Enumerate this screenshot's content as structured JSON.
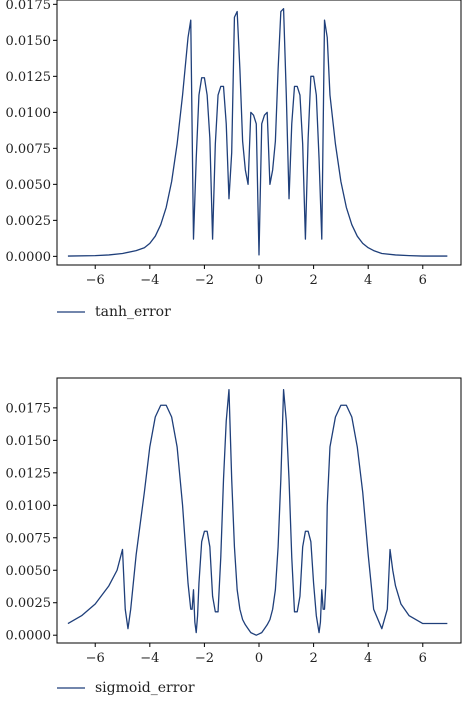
{
  "chart_data": [
    {
      "type": "line",
      "legend": {
        "placement": "bottom-left",
        "entries": [
          "tanh_error"
        ]
      },
      "series": [
        {
          "name": "tanh_error",
          "color": "#1f3f7a",
          "x": [
            -7.0,
            -6.0,
            -5.5,
            -5.0,
            -4.5,
            -4.2,
            -4.0,
            -3.8,
            -3.6,
            -3.4,
            -3.2,
            -3.0,
            -2.8,
            -2.6,
            -2.5,
            -2.4,
            -2.3,
            -2.2,
            -2.1,
            -2.0,
            -1.9,
            -1.8,
            -1.7,
            -1.6,
            -1.5,
            -1.4,
            -1.3,
            -1.2,
            -1.1,
            -1.0,
            -0.9,
            -0.8,
            -0.7,
            -0.6,
            -0.5,
            -0.4,
            -0.3,
            -0.2,
            -0.1,
            0.0,
            0.1,
            0.2,
            0.3,
            0.4,
            0.5,
            0.6,
            0.7,
            0.8,
            0.9,
            1.0,
            1.1,
            1.2,
            1.3,
            1.4,
            1.5,
            1.6,
            1.7,
            1.8,
            1.9,
            2.0,
            2.1,
            2.2,
            2.3,
            2.4,
            2.5,
            2.6,
            2.8,
            3.0,
            3.2,
            3.4,
            3.6,
            3.8,
            4.0,
            4.2,
            4.5,
            5.0,
            5.5,
            6.0,
            6.9
          ],
          "values": [
            2e-05,
            5e-05,
            0.0001,
            0.0002,
            0.0004,
            0.0006,
            0.0009,
            0.0014,
            0.0022,
            0.0034,
            0.0052,
            0.0078,
            0.0112,
            0.0152,
            0.0164,
            0.0012,
            0.0068,
            0.0112,
            0.0124,
            0.0124,
            0.0112,
            0.0082,
            0.0012,
            0.0078,
            0.0112,
            0.0118,
            0.0118,
            0.0092,
            0.004,
            0.0072,
            0.0166,
            0.017,
            0.013,
            0.008,
            0.006,
            0.005,
            0.01,
            0.0098,
            0.0092,
            0.0001,
            0.0092,
            0.0098,
            0.01,
            0.005,
            0.006,
            0.008,
            0.013,
            0.017,
            0.0172,
            0.0112,
            0.004,
            0.0092,
            0.0118,
            0.0118,
            0.0112,
            0.0078,
            0.0012,
            0.0082,
            0.0125,
            0.0125,
            0.0112,
            0.0068,
            0.0012,
            0.0164,
            0.0152,
            0.0112,
            0.0078,
            0.0052,
            0.0034,
            0.0022,
            0.0014,
            0.0009,
            0.0006,
            0.0004,
            0.0002,
            0.0001,
            5e-05,
            2e-05,
            2e-05
          ]
        }
      ],
      "xlim": [
        -7.4,
        7.4
      ],
      "ylim": [
        -0.0006,
        0.0178
      ],
      "xticks": [
        -6,
        -4,
        -2,
        0,
        2,
        4,
        6
      ],
      "xtick_labels": [
        "−6",
        "−4",
        "−2",
        "0",
        "2",
        "4",
        "6"
      ],
      "yticks": [
        0.0,
        0.0025,
        0.005,
        0.0075,
        0.01,
        0.0125,
        0.015,
        0.0175
      ],
      "ytick_labels": [
        "0.0000",
        "0.0025",
        "0.0050",
        "0.0075",
        "0.0100",
        "0.0125",
        "0.0150",
        "0.0175"
      ],
      "grid": false
    },
    {
      "type": "line",
      "legend": {
        "placement": "bottom-left",
        "entries": [
          "sigmoid_error"
        ]
      },
      "series": [
        {
          "name": "sigmoid_error",
          "color": "#1f3f7a",
          "x": [
            -7.0,
            -6.5,
            -6.0,
            -5.5,
            -5.2,
            -5.0,
            -4.9,
            -4.8,
            -4.7,
            -4.5,
            -4.2,
            -4.0,
            -3.8,
            -3.6,
            -3.4,
            -3.2,
            -3.0,
            -2.8,
            -2.6,
            -2.5,
            -2.45,
            -2.4,
            -2.35,
            -2.3,
            -2.25,
            -2.2,
            -2.1,
            -2.0,
            -1.9,
            -1.8,
            -1.7,
            -1.6,
            -1.5,
            -1.4,
            -1.3,
            -1.2,
            -1.1,
            -1.0,
            -0.9,
            -0.8,
            -0.7,
            -0.6,
            -0.5,
            -0.4,
            -0.3,
            -0.2,
            -0.1,
            0.0,
            0.1,
            0.2,
            0.3,
            0.4,
            0.5,
            0.6,
            0.7,
            0.8,
            0.9,
            1.0,
            1.1,
            1.2,
            1.3,
            1.4,
            1.5,
            1.6,
            1.7,
            1.8,
            1.9,
            2.0,
            2.1,
            2.2,
            2.25,
            2.3,
            2.35,
            2.4,
            2.45,
            2.5,
            2.6,
            2.8,
            3.0,
            3.2,
            3.4,
            3.6,
            3.8,
            4.0,
            4.2,
            4.5,
            4.7,
            4.8,
            4.9,
            5.0,
            5.2,
            5.5,
            6.0,
            6.5,
            6.9
          ],
          "values": [
            0.0009,
            0.0015,
            0.0024,
            0.0038,
            0.005,
            0.0066,
            0.002,
            0.0005,
            0.002,
            0.0062,
            0.011,
            0.0145,
            0.0168,
            0.0177,
            0.0177,
            0.0168,
            0.0145,
            0.01,
            0.004,
            0.002,
            0.002,
            0.0035,
            0.001,
            0.0002,
            0.0015,
            0.004,
            0.0072,
            0.008,
            0.008,
            0.0068,
            0.003,
            0.0018,
            0.0018,
            0.006,
            0.012,
            0.0165,
            0.0189,
            0.012,
            0.0068,
            0.0035,
            0.002,
            0.0012,
            0.0008,
            0.0005,
            0.0002,
            0.0001,
            0.0,
            0.0001,
            0.0002,
            0.0005,
            0.0008,
            0.0012,
            0.002,
            0.0035,
            0.0068,
            0.012,
            0.0189,
            0.0165,
            0.012,
            0.006,
            0.0018,
            0.0018,
            0.003,
            0.0068,
            0.008,
            0.008,
            0.0072,
            0.004,
            0.0015,
            0.0002,
            0.001,
            0.0035,
            0.002,
            0.002,
            0.004,
            0.01,
            0.0145,
            0.0168,
            0.0177,
            0.0177,
            0.0168,
            0.0145,
            0.011,
            0.0062,
            0.002,
            0.0005,
            0.002,
            0.0066,
            0.005,
            0.0038,
            0.0024,
            0.0015,
            0.0009,
            0.0009,
            0.0009
          ]
        }
      ],
      "xlim": [
        -7.4,
        7.4
      ],
      "ylim": [
        -0.0006,
        0.0198
      ],
      "xticks": [
        -6,
        -4,
        -2,
        0,
        2,
        4,
        6
      ],
      "xtick_labels": [
        "−6",
        "−4",
        "−2",
        "0",
        "2",
        "4",
        "6"
      ],
      "yticks": [
        0.0,
        0.0025,
        0.005,
        0.0075,
        0.01,
        0.0125,
        0.015,
        0.0175
      ],
      "ytick_labels": [
        "0.0000",
        "0.0025",
        "0.0050",
        "0.0075",
        "0.0100",
        "0.0125",
        "0.0150",
        "0.0175"
      ],
      "grid": false
    }
  ]
}
